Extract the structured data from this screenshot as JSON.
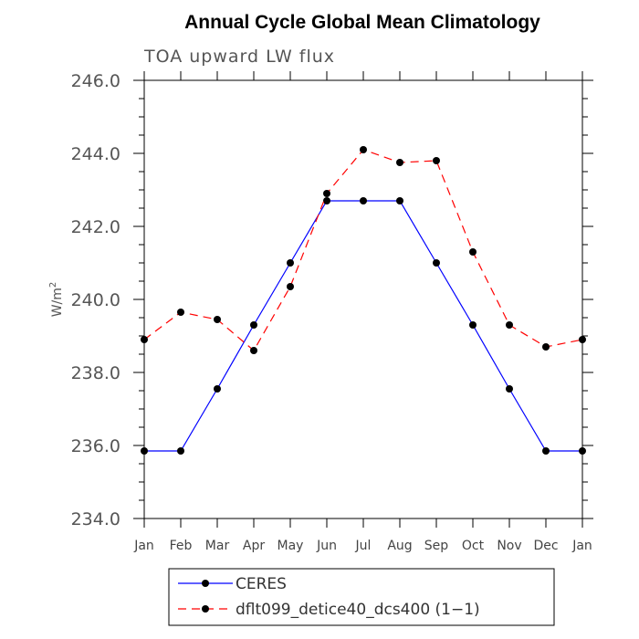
{
  "chart_data": {
    "type": "line",
    "title": "Annual Cycle Global Mean Climatology",
    "subtitle": "TOA upward LW flux",
    "ylabel": "W/m",
    "ylabel_sup": "2",
    "xlabel": "",
    "categories": [
      "Jan",
      "Feb",
      "Mar",
      "Apr",
      "May",
      "Jun",
      "Jul",
      "Aug",
      "Sep",
      "Oct",
      "Nov",
      "Dec",
      "Jan"
    ],
    "ylim": [
      234.0,
      246.0
    ],
    "yticks": [
      "234.0",
      "236.0",
      "238.0",
      "240.0",
      "242.0",
      "244.0",
      "246.0"
    ],
    "grid": false,
    "legend_position": "bottom",
    "series": [
      {
        "name": "CERES",
        "color": "#0000ff",
        "dash": "solid",
        "marker": "filled-circle",
        "values": [
          235.85,
          235.85,
          237.55,
          239.3,
          241.0,
          242.7,
          242.7,
          242.7,
          241.0,
          239.3,
          237.55,
          235.85,
          235.85
        ]
      },
      {
        "name": "dflt099_detice40_dcs400 (1−1)",
        "color": "#ff0000",
        "dash": "dashed",
        "marker": "filled-circle",
        "values": [
          238.9,
          239.65,
          239.45,
          238.6,
          240.35,
          242.9,
          244.1,
          243.75,
          243.8,
          241.3,
          239.3,
          238.7,
          238.9
        ]
      }
    ]
  }
}
